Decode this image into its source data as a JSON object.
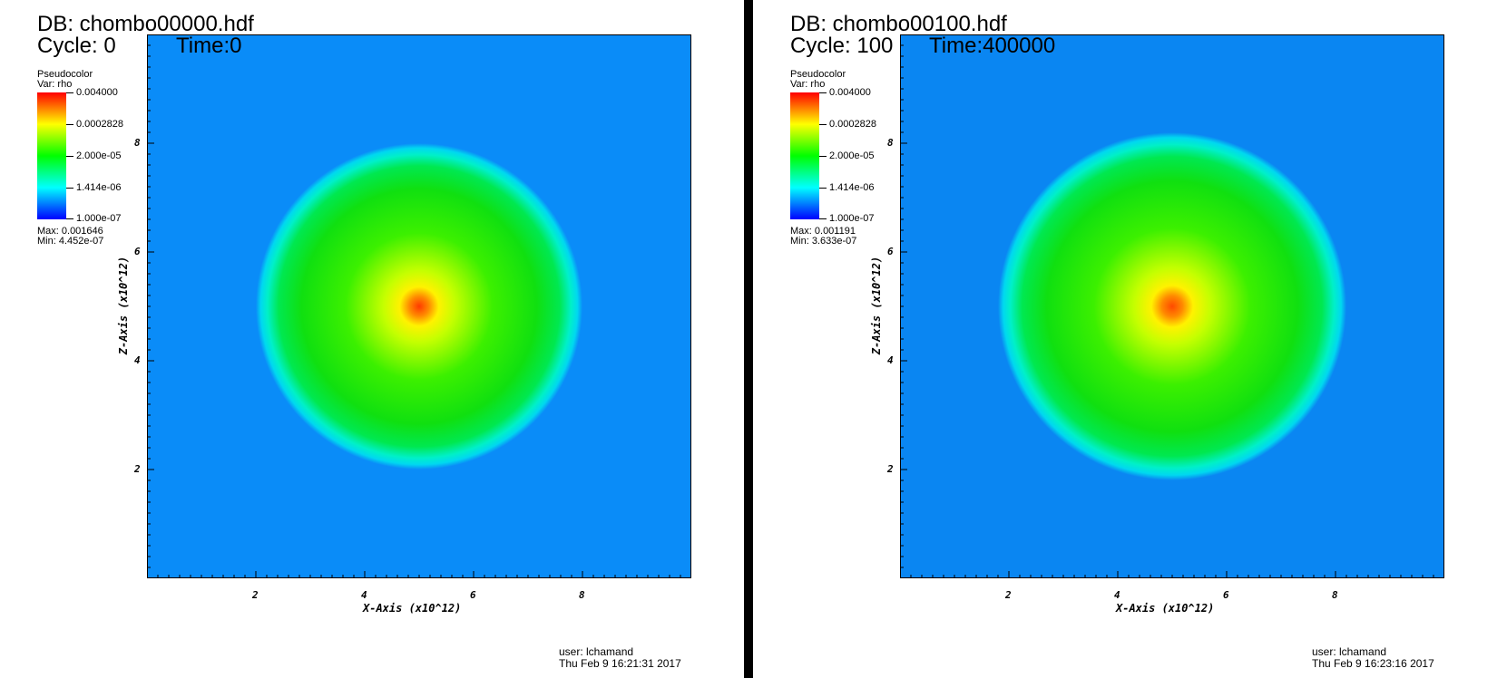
{
  "panels": [
    {
      "db_title": "DB: chombo00000.hdf",
      "cycle_label": "Cycle: 0",
      "time_label": "Time:0",
      "legend": {
        "title": "Pseudocolor",
        "var": "Var: rho",
        "labels": [
          "0.004000",
          "0.0002828",
          "2.000e-05",
          "1.414e-06",
          "1.000e-07"
        ],
        "max": "Max:  0.001646",
        "min": "Min:  4.452e-07"
      },
      "user": "user: lchamand",
      "date": "Thu Feb  9 16:21:31 2017",
      "chart_data": {
        "type": "heatmap",
        "variable": "rho",
        "xlabel": "X-Axis (x10^12)",
        "ylabel": "Z-Axis (x10^12)",
        "xlim": [
          0,
          10
        ],
        "ylim": [
          0,
          10
        ],
        "xticks": [
          "2",
          "4",
          "6",
          "8"
        ],
        "yticks": [
          "2",
          "4",
          "6",
          "8"
        ],
        "color_scale": "log",
        "color_range": [
          1e-07,
          0.004
        ],
        "background_color": "#0a8cf8",
        "center": [
          5,
          5
        ],
        "sphere_radius_x": 3.0,
        "sphere_radius_y": 3.0,
        "peak_color": "#ff3a00"
      }
    },
    {
      "db_title": "DB: chombo00100.hdf",
      "cycle_label": "Cycle: 100",
      "time_label": "Time:400000",
      "legend": {
        "title": "Pseudocolor",
        "var": "Var: rho",
        "labels": [
          "0.004000",
          "0.0002828",
          "2.000e-05",
          "1.414e-06",
          "1.000e-07"
        ],
        "max": "Max:  0.001191",
        "min": "Min:  3.633e-07"
      },
      "user": "user: lchamand",
      "date": "Thu Feb  9 16:23:16 2017",
      "chart_data": {
        "type": "heatmap",
        "variable": "rho",
        "xlabel": "X-Axis (x10^12)",
        "ylabel": "Z-Axis (x10^12)",
        "xlim": [
          0,
          10
        ],
        "ylim": [
          0,
          10
        ],
        "xticks": [
          "2",
          "4",
          "6",
          "8"
        ],
        "yticks": [
          "2",
          "4",
          "6",
          "8"
        ],
        "color_scale": "log",
        "color_range": [
          1e-07,
          0.004
        ],
        "background_color": "#0a86f2",
        "center": [
          5,
          5
        ],
        "sphere_radius_x": 3.2,
        "sphere_radius_y": 3.2,
        "peak_color": "#ff4a00"
      }
    }
  ]
}
